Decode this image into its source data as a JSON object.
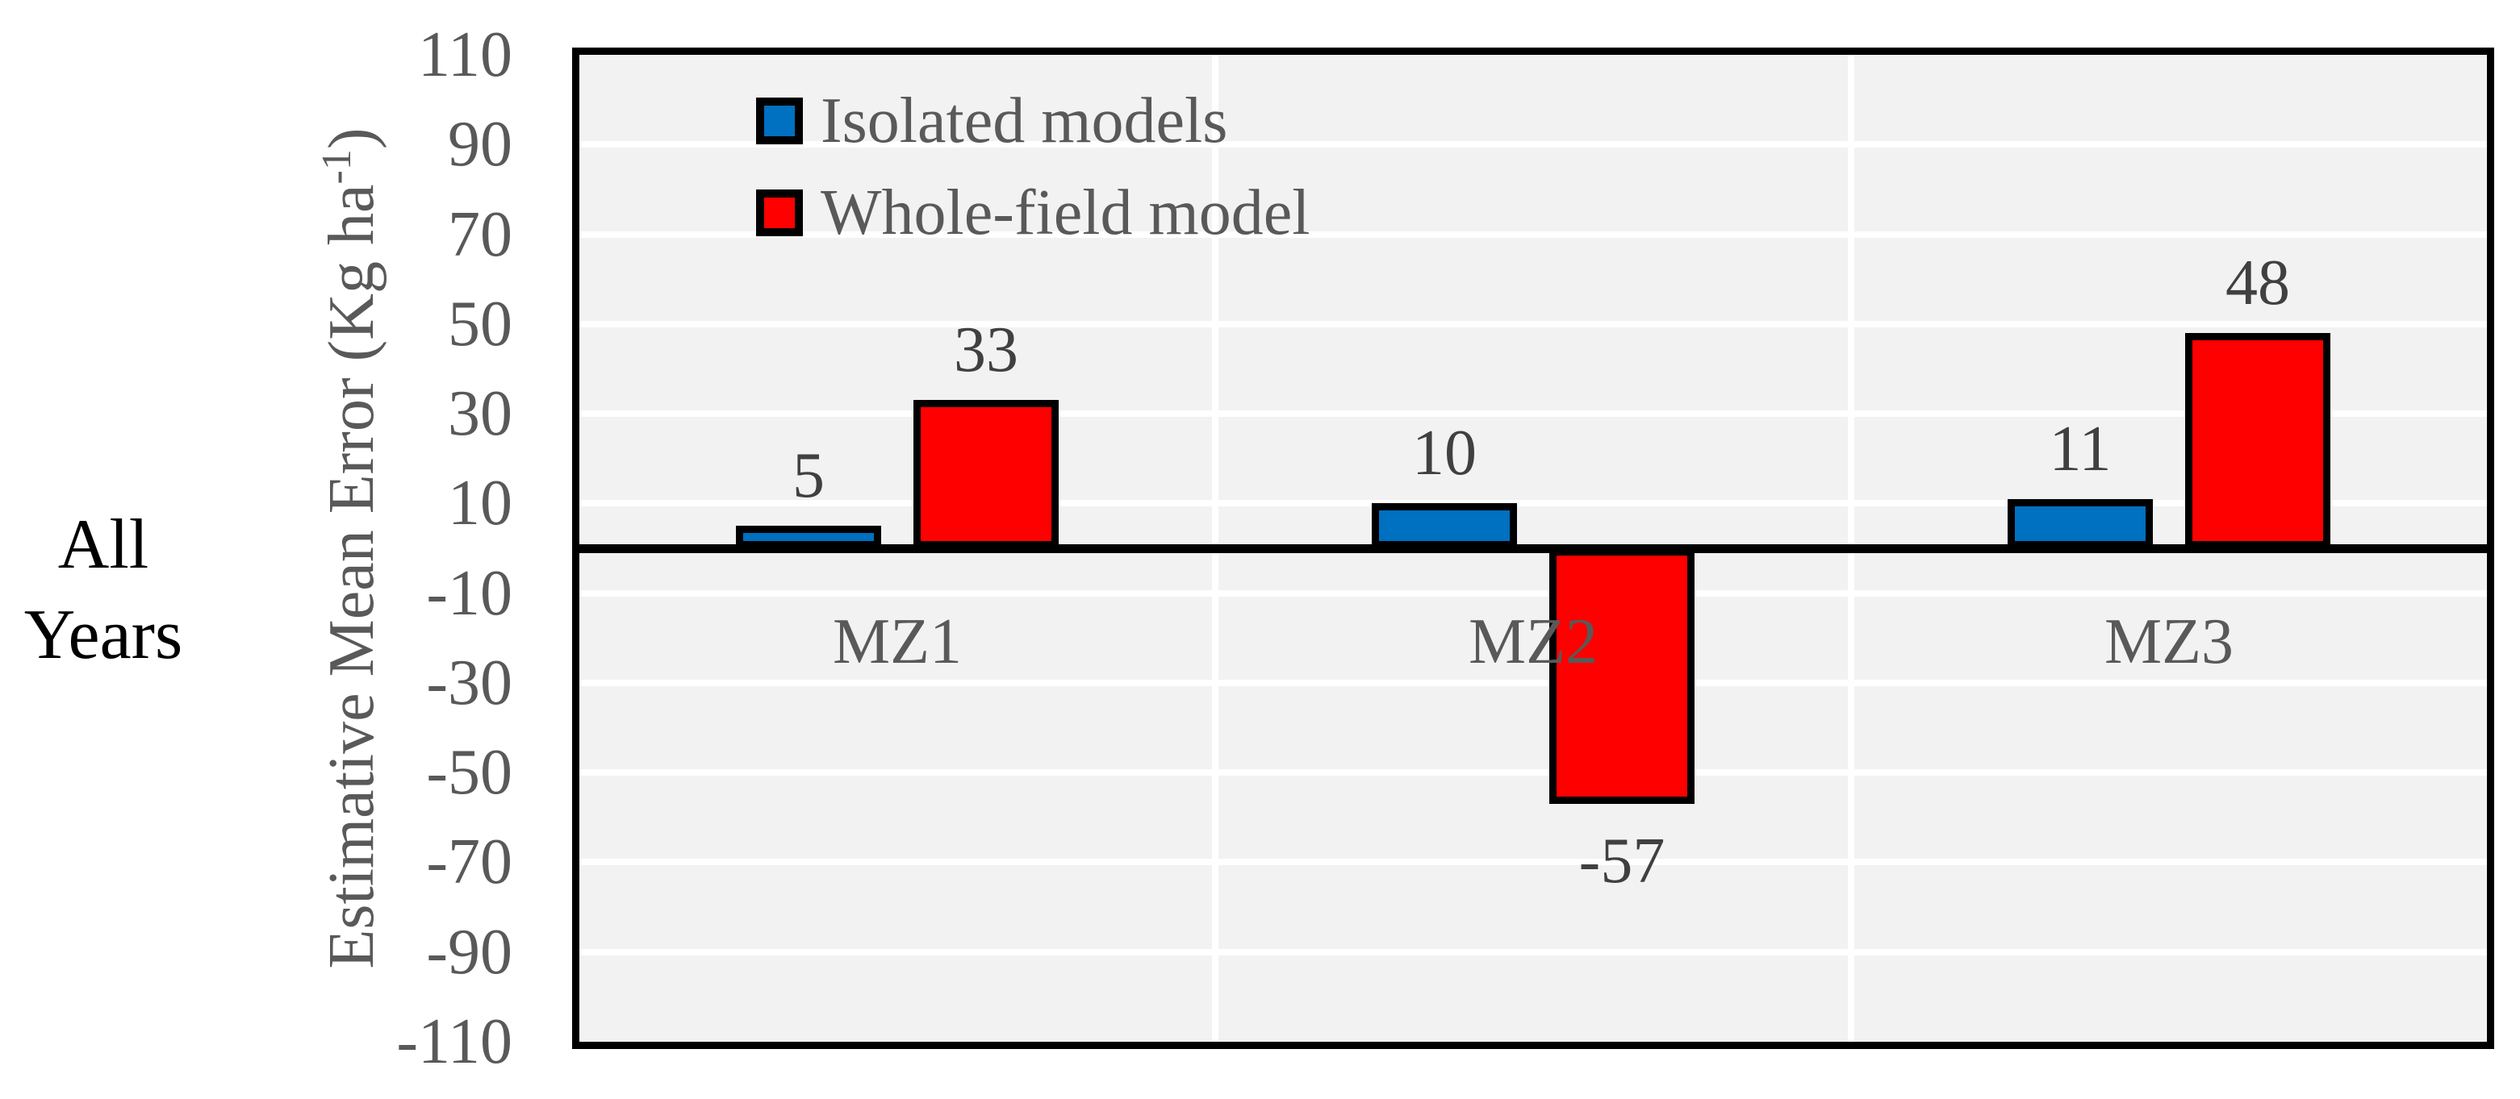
{
  "chart_data": {
    "type": "bar",
    "row_label_lines": [
      "All",
      "Years"
    ],
    "ylabel_prefix": "Estimative Mean Error (Kg ha",
    "ylabel_sup": "-1",
    "ylabel_suffix": ")",
    "categories": [
      "MZ1",
      "MZ2",
      "MZ3"
    ],
    "series": [
      {
        "name": "Isolated models",
        "color": "#0070C0",
        "values": [
          5,
          10,
          11
        ]
      },
      {
        "name": "Whole-field model",
        "color": "#FF0000",
        "values": [
          33,
          -57,
          48
        ]
      }
    ],
    "data_labels": [
      [
        "5",
        "10",
        "11"
      ],
      [
        "33",
        "-57",
        "48"
      ]
    ],
    "yticks": [
      110,
      90,
      70,
      50,
      30,
      10,
      -10,
      -30,
      -50,
      -70,
      -90,
      -110
    ],
    "ylim": [
      -110,
      110
    ],
    "ytick_step": 20,
    "grid": true,
    "legend_position": "top-left-inside",
    "colors": {
      "plot_bg": "#F2F2F2",
      "gridline": "#FFFFFF",
      "axis_and_borders": "#000000",
      "tick_text": "#595959",
      "data_label_text": "#404040",
      "row_label_text": "#000000",
      "series_blue": "#0070C0",
      "series_red": "#FF0000"
    }
  }
}
